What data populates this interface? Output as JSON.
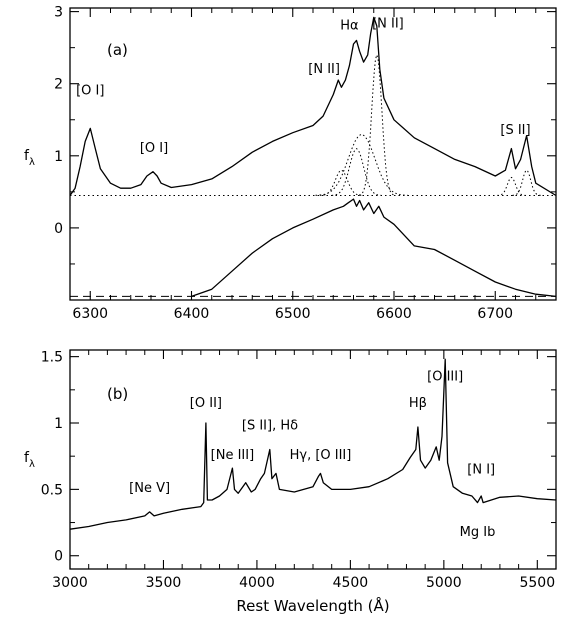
{
  "chart_data": [
    {
      "type": "line",
      "panel_label": "(a)",
      "ylabel": "f",
      "ylabel_sub": "λ",
      "xlim": [
        6280,
        6760
      ],
      "ylim": [
        -1.0,
        3.05
      ],
      "x_ticks": [
        6300,
        6400,
        6500,
        6600,
        6700
      ],
      "y_ticks": [
        0,
        1,
        2,
        3
      ],
      "continuum_level": 0.45,
      "baseline_level": -0.95,
      "series": [
        {
          "role": "observed-spectrum",
          "x": [
            6280,
            6285,
            6290,
            6295,
            6300,
            6305,
            6310,
            6320,
            6330,
            6340,
            6350,
            6356,
            6362,
            6366,
            6370,
            6380,
            6400,
            6420,
            6440,
            6460,
            6480,
            6500,
            6520,
            6530,
            6540,
            6545,
            6548,
            6552,
            6556,
            6560,
            6563,
            6566,
            6570,
            6574,
            6577,
            6580,
            6583,
            6586,
            6590,
            6600,
            6620,
            6640,
            6660,
            6680,
            6700,
            6710,
            6716,
            6720,
            6725,
            6731,
            6736,
            6740,
            6760
          ],
          "y": [
            0.45,
            0.55,
            0.85,
            1.2,
            1.38,
            1.1,
            0.82,
            0.62,
            0.55,
            0.55,
            0.6,
            0.72,
            0.78,
            0.72,
            0.62,
            0.56,
            0.6,
            0.68,
            0.85,
            1.05,
            1.2,
            1.32,
            1.42,
            1.55,
            1.85,
            2.05,
            1.95,
            2.05,
            2.25,
            2.55,
            2.6,
            2.45,
            2.3,
            2.4,
            2.7,
            2.92,
            2.8,
            2.2,
            1.8,
            1.5,
            1.25,
            1.1,
            0.95,
            0.85,
            0.72,
            0.8,
            1.1,
            0.82,
            0.95,
            1.28,
            0.85,
            0.62,
            0.45
          ]
        },
        {
          "role": "broad-component",
          "x": [
            6400,
            6420,
            6440,
            6460,
            6480,
            6500,
            6520,
            6540,
            6550,
            6555,
            6560,
            6563,
            6566,
            6570,
            6575,
            6580,
            6585,
            6590,
            6600,
            6620,
            6640,
            6660,
            6680,
            6700,
            6720,
            6740,
            6760
          ],
          "y": [
            -0.95,
            -0.85,
            -0.6,
            -0.35,
            -0.15,
            0.0,
            0.12,
            0.25,
            0.3,
            0.35,
            0.4,
            0.3,
            0.38,
            0.25,
            0.35,
            0.2,
            0.3,
            0.15,
            0.05,
            -0.25,
            -0.3,
            -0.45,
            -0.6,
            -0.75,
            -0.85,
            -0.92,
            -0.95
          ]
        }
      ],
      "component_fits": [
        {
          "center": 6548,
          "sigma": 6,
          "amplitude": 0.35
        },
        {
          "center": 6563,
          "sigma": 7,
          "amplitude": 0.65
        },
        {
          "center": 6568,
          "sigma": 13,
          "amplitude": 0.85
        },
        {
          "center": 6583,
          "sigma": 5,
          "amplitude": 1.95
        },
        {
          "center": 6716,
          "sigma": 4,
          "amplitude": 0.25
        },
        {
          "center": 6731,
          "sigma": 4,
          "amplitude": 0.35
        }
      ],
      "annotations": [
        {
          "text": "[O I]",
          "x": 6300,
          "y": 1.85
        },
        {
          "text": "[O I]",
          "x": 6363,
          "y": 1.05
        },
        {
          "text": "[N II]",
          "x": 6531,
          "y": 2.15
        },
        {
          "text": "Hα",
          "x": 6556,
          "y": 2.75
        },
        {
          "text": "[N II]",
          "x": 6594,
          "y": 2.78
        },
        {
          "text": "[S II]",
          "x": 6720,
          "y": 1.3
        }
      ]
    },
    {
      "type": "line",
      "panel_label": "(b)",
      "xlabel": "Rest Wavelength (Å)",
      "ylabel": "f",
      "ylabel_sub": "λ",
      "xlim": [
        3000,
        5600
      ],
      "ylim": [
        -0.1,
        1.55
      ],
      "x_ticks": [
        3000,
        3500,
        4000,
        4500,
        5000,
        5500
      ],
      "y_ticks": [
        0,
        0.5,
        1,
        1.5
      ],
      "y_tick_labels": [
        "0",
        "0.5",
        "1",
        "1.5"
      ],
      "series": [
        {
          "role": "observed-spectrum",
          "x": [
            3000,
            3100,
            3200,
            3300,
            3400,
            3426,
            3450,
            3500,
            3600,
            3700,
            3715,
            3727,
            3735,
            3760,
            3800,
            3840,
            3869,
            3880,
            3900,
            3940,
            3970,
            3990,
            4020,
            4040,
            4069,
            4080,
            4102,
            4120,
            4200,
            4300,
            4330,
            4340,
            4355,
            4400,
            4500,
            4600,
            4700,
            4780,
            4820,
            4850,
            4861,
            4875,
            4900,
            4930,
            4959,
            4975,
            4990,
            5007,
            5020,
            5050,
            5100,
            5150,
            5180,
            5200,
            5210,
            5300,
            5400,
            5500,
            5600
          ],
          "y": [
            0.2,
            0.22,
            0.25,
            0.27,
            0.3,
            0.33,
            0.3,
            0.32,
            0.35,
            0.37,
            0.4,
            1.0,
            0.42,
            0.42,
            0.45,
            0.5,
            0.66,
            0.5,
            0.47,
            0.55,
            0.48,
            0.5,
            0.58,
            0.62,
            0.8,
            0.58,
            0.62,
            0.5,
            0.48,
            0.52,
            0.6,
            0.62,
            0.55,
            0.5,
            0.5,
            0.52,
            0.58,
            0.65,
            0.74,
            0.8,
            0.97,
            0.72,
            0.66,
            0.72,
            0.82,
            0.72,
            0.9,
            1.48,
            0.7,
            0.52,
            0.47,
            0.45,
            0.4,
            0.45,
            0.4,
            0.44,
            0.45,
            0.43,
            0.42
          ]
        }
      ],
      "annotations": [
        {
          "text": "[O II]",
          "x": 3727,
          "y": 1.12
        },
        {
          "text": "[S II], Hδ",
          "x": 4070,
          "y": 0.95
        },
        {
          "text": "Hγ, [O III]",
          "x": 4340,
          "y": 0.73
        },
        {
          "text": "[Ne III]",
          "x": 3869,
          "y": 0.73
        },
        {
          "text": "[Ne V]",
          "x": 3426,
          "y": 0.48
        },
        {
          "text": "Hβ",
          "x": 4861,
          "y": 1.12
        },
        {
          "text": "[O III]",
          "x": 5007,
          "y": 1.32
        },
        {
          "text": "[N I]",
          "x": 5200,
          "y": 0.62
        },
        {
          "text": "Mg Ib",
          "x": 5180,
          "y": 0.15
        }
      ]
    }
  ]
}
